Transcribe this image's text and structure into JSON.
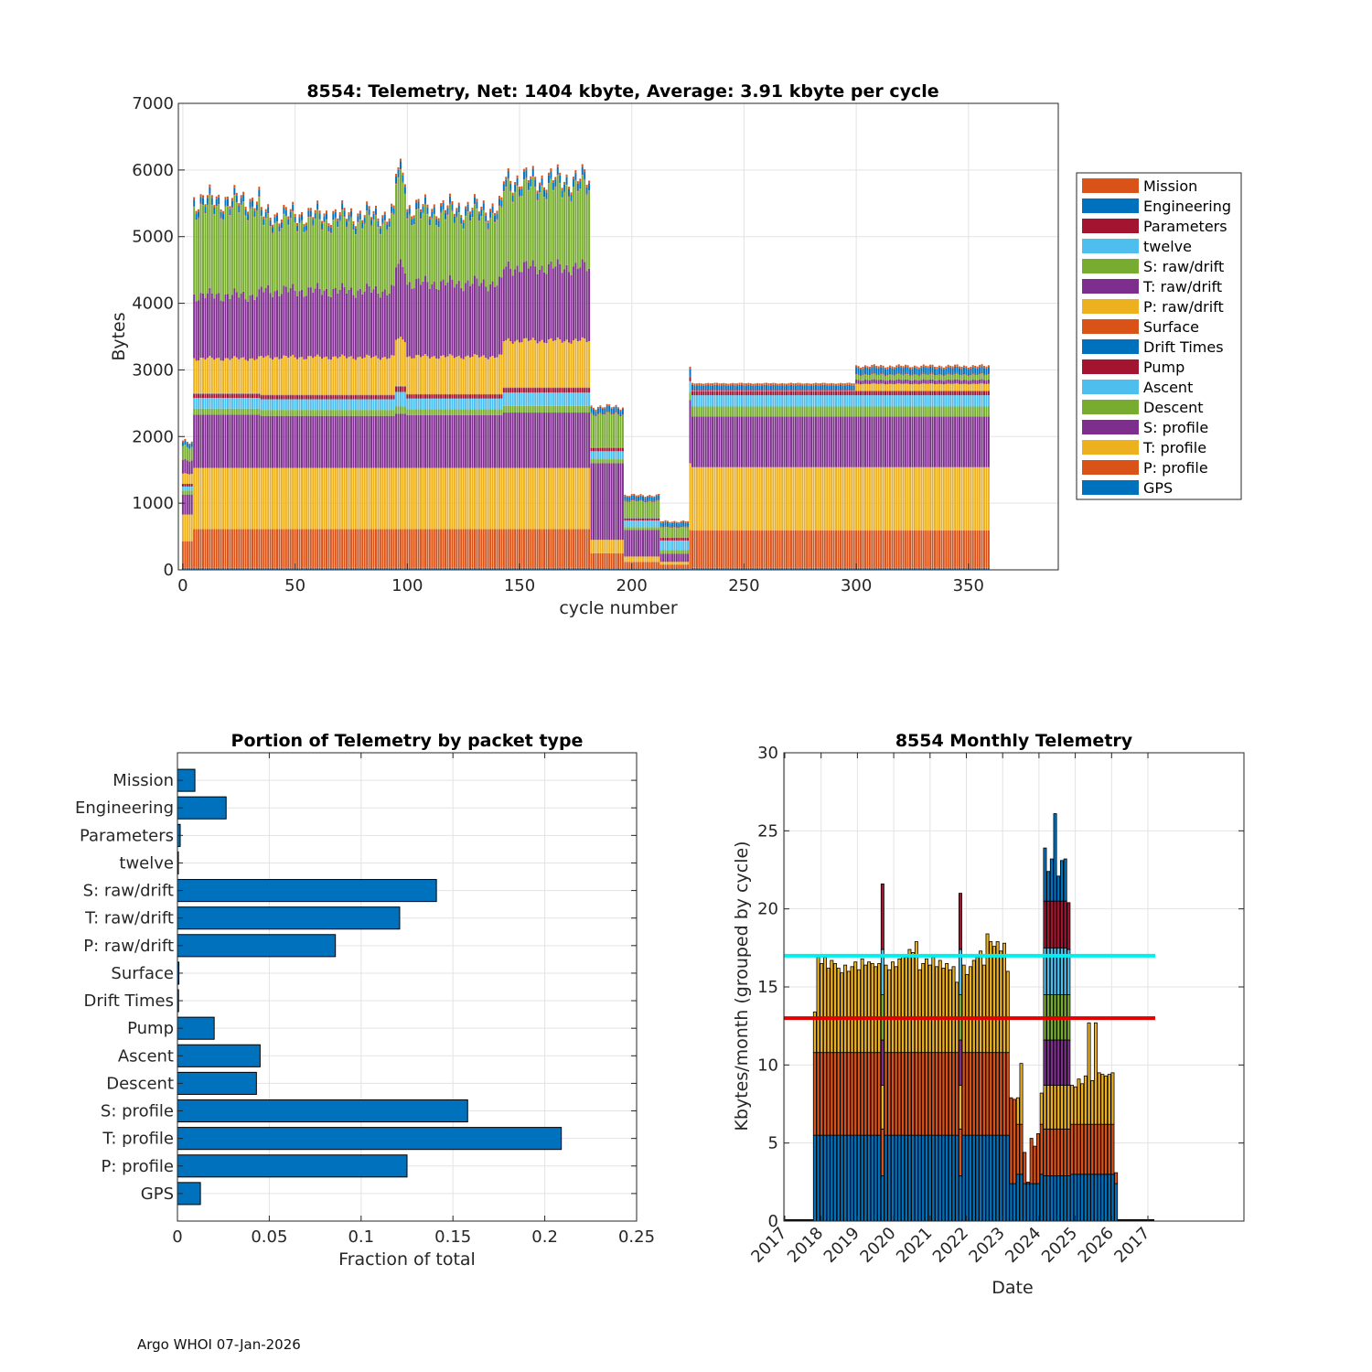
{
  "chart_data": [
    {
      "type": "stacked_bar",
      "title": "8554: Telemetry, Net:   1404 kbyte,  Average: 3.91 kbyte per cycle",
      "xlabel": "cycle number",
      "ylabel": "Bytes",
      "xlim": [
        -2,
        390
      ],
      "ylim": [
        0,
        7000
      ],
      "xticks": [
        0,
        50,
        100,
        150,
        200,
        250,
        300,
        350
      ],
      "yticks": [
        0,
        1000,
        2000,
        3000,
        4000,
        5000,
        6000,
        7000
      ],
      "grid": true,
      "legend_position": "outside-right",
      "legend": [
        "Mission",
        "Engineering",
        "Parameters",
        "twelve",
        "S: raw/drift",
        "T: raw/drift",
        "P: raw/drift",
        "Surface",
        "Drift Times",
        "Pump",
        "Ascent",
        "Descent",
        "S: profile",
        "T: profile",
        "P: profile",
        "GPS"
      ],
      "stack_order": [
        "GPS",
        "P: profile",
        "T: profile",
        "S: profile",
        "Descent",
        "Ascent",
        "Pump",
        "Drift Times",
        "Surface",
        "P: raw/drift",
        "T: raw/drift",
        "S: raw/drift",
        "twelve",
        "Parameters",
        "Engineering",
        "Mission"
      ],
      "segments": [
        {
          "from": 0,
          "to": 4,
          "values": [
            30,
            400,
            400,
            300,
            60,
            60,
            40,
            0,
            0,
            150,
            200,
            200,
            0,
            0,
            60,
            20
          ]
        },
        {
          "from": 5,
          "to": 34,
          "values": [
            30,
            580,
            920,
            800,
            90,
            160,
            60,
            5,
            5,
            520,
            950,
            1300,
            5,
            10,
            90,
            40
          ]
        },
        {
          "from": 35,
          "to": 94,
          "values": [
            30,
            580,
            920,
            780,
            90,
            160,
            60,
            5,
            5,
            560,
            1000,
            1020,
            5,
            10,
            80,
            40
          ]
        },
        {
          "from": 95,
          "to": 99,
          "values": [
            30,
            580,
            920,
            810,
            110,
            220,
            80,
            5,
            5,
            700,
            1100,
            1270,
            5,
            10,
            100,
            40
          ]
        },
        {
          "from": 100,
          "to": 142,
          "values": [
            30,
            580,
            920,
            790,
            90,
            160,
            60,
            5,
            5,
            560,
            1100,
            1000,
            5,
            10,
            90,
            40
          ]
        },
        {
          "from": 143,
          "to": 181,
          "values": [
            30,
            580,
            920,
            830,
            100,
            200,
            70,
            5,
            5,
            700,
            1100,
            1180,
            5,
            10,
            100,
            40
          ]
        },
        {
          "from": 182,
          "to": 196,
          "values": [
            20,
            230,
            200,
            1150,
            60,
            120,
            50,
            5,
            5,
            0,
            0,
            500,
            0,
            10,
            80,
            20
          ]
        },
        {
          "from": 197,
          "to": 212,
          "values": [
            20,
            100,
            80,
            400,
            40,
            100,
            30,
            5,
            5,
            0,
            0,
            250,
            0,
            10,
            60,
            20
          ]
        },
        {
          "from": 213,
          "to": 225,
          "values": [
            20,
            60,
            40,
            120,
            60,
            140,
            40,
            5,
            5,
            0,
            0,
            150,
            0,
            10,
            60,
            20
          ]
        },
        {
          "from": 226,
          "to": 226,
          "values": [
            20,
            580,
            1000,
            950,
            120,
            160,
            60,
            5,
            5,
            0,
            0,
            0,
            0,
            10,
            100,
            30
          ]
        },
        {
          "from": 227,
          "to": 299,
          "values": [
            30,
            560,
            950,
            760,
            150,
            170,
            60,
            5,
            5,
            0,
            0,
            0,
            0,
            10,
            70,
            30
          ]
        },
        {
          "from": 300,
          "to": 359,
          "values": [
            30,
            560,
            950,
            760,
            150,
            170,
            60,
            5,
            5,
            100,
            60,
            80,
            0,
            10,
            90,
            30
          ]
        }
      ]
    },
    {
      "type": "barh",
      "title": "Portion of Telemetry by packet type",
      "xlabel": "Fraction of total",
      "xlim": [
        0,
        0.25
      ],
      "xticks": [
        "0",
        "0.05",
        "0.1",
        "0.15",
        "0.2",
        "0.25"
      ],
      "grid": true,
      "categories": [
        "Mission",
        "Engineering",
        "Parameters",
        "twelve",
        "S: raw/drift",
        "T: raw/drift",
        "P: raw/drift",
        "Surface",
        "Drift Times",
        "Pump",
        "Ascent",
        "Descent",
        "S: profile",
        "T: profile",
        "P: profile",
        "GPS"
      ],
      "values": [
        0.0095,
        0.0265,
        0.0015,
        0.0005,
        0.141,
        0.121,
        0.086,
        0.0008,
        0.0006,
        0.02,
        0.045,
        0.043,
        0.158,
        0.209,
        0.125,
        0.0125
      ]
    },
    {
      "type": "stacked_bar",
      "title": "8554 Monthly Telemetry",
      "xlabel": "Date",
      "ylabel": "Kbytes/month (grouped by cycle)",
      "ylim": [
        0,
        30
      ],
      "yticks": [
        0,
        5,
        10,
        15,
        20,
        25,
        30
      ],
      "xticks": [
        "2017",
        "2018",
        "2019",
        "2020",
        "2021",
        "2022",
        "2023",
        "2024",
        "2025",
        "2026",
        "2017"
      ],
      "grid": true,
      "reference_lines": [
        {
          "name": "cyan-limit",
          "y": 17,
          "color": "#00f0f0"
        },
        {
          "name": "red-limit",
          "y": 13,
          "color": "#e00000"
        }
      ],
      "months": [
        {
          "date": "2017-11",
          "total": 13.4
        },
        {
          "date": "2017-12",
          "total": 16.9
        },
        {
          "date": "2018-01",
          "total": 16.5
        },
        {
          "date": "2018-02",
          "total": 16.9
        },
        {
          "date": "2018-03",
          "total": 16.2
        },
        {
          "date": "2018-04",
          "total": 16.7
        },
        {
          "date": "2018-05",
          "total": 16.5
        },
        {
          "date": "2018-06",
          "total": 16.2
        },
        {
          "date": "2018-07",
          "total": 15.9
        },
        {
          "date": "2018-08",
          "total": 16.4
        },
        {
          "date": "2018-09",
          "total": 16.0
        },
        {
          "date": "2018-10",
          "total": 16.3
        },
        {
          "date": "2018-11",
          "total": 16.6
        },
        {
          "date": "2018-12",
          "total": 16.1
        },
        {
          "date": "2019-01",
          "total": 16.8
        },
        {
          "date": "2019-02",
          "total": 16.4
        },
        {
          "date": "2019-03",
          "total": 16.6
        },
        {
          "date": "2019-04",
          "total": 16.5
        },
        {
          "date": "2019-05",
          "total": 16.3
        },
        {
          "date": "2019-06",
          "total": 16.5
        },
        {
          "date": "2019-07",
          "total": 21.6
        },
        {
          "date": "2019-08",
          "total": 16.4
        },
        {
          "date": "2019-09",
          "total": 16.1
        },
        {
          "date": "2019-10",
          "total": 16.6
        },
        {
          "date": "2019-11",
          "total": 16.3
        },
        {
          "date": "2019-12",
          "total": 16.8
        },
        {
          "date": "2020-01",
          "total": 17.0
        },
        {
          "date": "2020-02",
          "total": 16.9
        },
        {
          "date": "2020-03",
          "total": 17.4
        },
        {
          "date": "2020-04",
          "total": 17.2
        },
        {
          "date": "2020-05",
          "total": 17.9
        },
        {
          "date": "2020-06",
          "total": 16.1
        },
        {
          "date": "2020-07",
          "total": 16.5
        },
        {
          "date": "2020-08",
          "total": 16.8
        },
        {
          "date": "2020-09",
          "total": 16.4
        },
        {
          "date": "2020-10",
          "total": 16.9
        },
        {
          "date": "2020-11",
          "total": 16.3
        },
        {
          "date": "2020-12",
          "total": 16.7
        },
        {
          "date": "2021-01",
          "total": 16.2
        },
        {
          "date": "2021-02",
          "total": 16.5
        },
        {
          "date": "2021-03",
          "total": 16.1
        },
        {
          "date": "2021-04",
          "total": 16.3
        },
        {
          "date": "2021-05",
          "total": 15.3
        },
        {
          "date": "2021-06",
          "total": 21.0
        },
        {
          "date": "2021-07",
          "total": 16.4
        },
        {
          "date": "2021-08",
          "total": 15.8
        },
        {
          "date": "2021-09",
          "total": 16.3
        },
        {
          "date": "2021-10",
          "total": 16.7
        },
        {
          "date": "2021-11",
          "total": 16.9
        },
        {
          "date": "2021-12",
          "total": 17.3
        },
        {
          "date": "2022-01",
          "total": 16.4
        },
        {
          "date": "2022-02",
          "total": 18.4
        },
        {
          "date": "2022-03",
          "total": 17.9
        },
        {
          "date": "2022-04",
          "total": 17.6
        },
        {
          "date": "2022-05",
          "total": 17.9
        },
        {
          "date": "2022-06",
          "total": 17.3
        },
        {
          "date": "2022-07",
          "total": 17.8
        },
        {
          "date": "2022-08",
          "total": 16.0
        },
        {
          "date": "2022-09",
          "total": 7.9
        },
        {
          "date": "2022-10",
          "total": 7.8
        },
        {
          "date": "2022-11",
          "total": 7.9
        },
        {
          "date": "2022-12",
          "total": 10.1
        },
        {
          "date": "2023-01",
          "total": 4.4
        },
        {
          "date": "2023-02",
          "total": 2.5
        },
        {
          "date": "2023-03",
          "total": 5.3
        },
        {
          "date": "2023-04",
          "total": 4.8
        },
        {
          "date": "2023-05",
          "total": 5.6
        },
        {
          "date": "2023-06",
          "total": 8.2
        },
        {
          "date": "2023-07",
          "total": 23.9
        },
        {
          "date": "2023-08",
          "total": 22.4
        },
        {
          "date": "2023-09",
          "total": 23.2
        },
        {
          "date": "2023-10",
          "total": 26.1
        },
        {
          "date": "2023-11",
          "total": 22.1
        },
        {
          "date": "2023-12",
          "total": 23.1
        },
        {
          "date": "2024-01",
          "total": 23.2
        },
        {
          "date": "2024-02",
          "total": 20.4
        },
        {
          "date": "2024-03",
          "total": 8.7
        },
        {
          "date": "2024-04",
          "total": 8.6
        },
        {
          "date": "2024-05",
          "total": 9.1
        },
        {
          "date": "2024-06",
          "total": 8.8
        },
        {
          "date": "2024-07",
          "total": 9.3
        },
        {
          "date": "2024-08",
          "total": 12.7
        },
        {
          "date": "2024-09",
          "total": 9.0
        },
        {
          "date": "2024-10",
          "total": 12.7
        },
        {
          "date": "2024-11",
          "total": 9.5
        },
        {
          "date": "2024-12",
          "total": 9.4
        },
        {
          "date": "2025-01",
          "total": 9.3
        },
        {
          "date": "2025-02",
          "total": 9.4
        },
        {
          "date": "2025-03",
          "total": 9.5
        },
        {
          "date": "2025-04",
          "total": 3.1
        }
      ]
    }
  ],
  "colors": {
    "Mission": "#d95319",
    "Engineering": "#0072bd",
    "Parameters": "#a2142f",
    "twelve": "#4dbeee",
    "S: raw/drift": "#77ac30",
    "T: raw/drift": "#7e2f8e",
    "P: raw/drift": "#edb120",
    "Surface": "#d95319",
    "Drift Times": "#0072bd",
    "Pump": "#a2142f",
    "Ascent": "#4dbeee",
    "Descent": "#77ac30",
    "S: profile": "#7e2f8e",
    "T: profile": "#edb120",
    "P: profile": "#d95319",
    "GPS": "#0072bd"
  },
  "footer": "Argo WHOI 07-Jan-2026"
}
